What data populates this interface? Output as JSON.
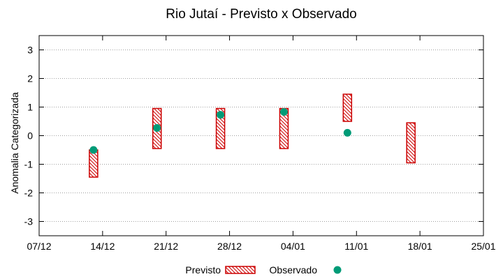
{
  "chart_data": {
    "type": "range-bar",
    "title": "Rio Jutaí - Previsto x Observado",
    "ylabel": "Anomalia Categorizada",
    "xlabel": "",
    "ylim": [
      -3.5,
      3.5
    ],
    "yticks": [
      3,
      2,
      1,
      0,
      -1,
      -2,
      -3
    ],
    "ytick_labels": [
      "3",
      "2",
      "1",
      "0",
      "-1",
      "-2",
      "-3"
    ],
    "xticks": [
      "07/12",
      "14/12",
      "21/12",
      "28/12",
      "04/01",
      "11/01",
      "18/01",
      "25/01"
    ],
    "grid": true,
    "legend_position": "bottom",
    "series": [
      {
        "name": "Previsto",
        "kind": "range",
        "points": [
          {
            "x": "13/12",
            "low": -1.45,
            "high": -0.5
          },
          {
            "x": "20/12",
            "low": -0.45,
            "high": 0.95
          },
          {
            "x": "27/12",
            "low": -0.45,
            "high": 0.95
          },
          {
            "x": "03/01",
            "low": -0.45,
            "high": 0.95
          },
          {
            "x": "10/01",
            "low": 0.5,
            "high": 1.45
          },
          {
            "x": "17/01",
            "low": -0.95,
            "high": 0.45
          }
        ]
      },
      {
        "name": "Observado",
        "kind": "point",
        "points": [
          {
            "x": "13/12",
            "y": -0.5
          },
          {
            "x": "20/12",
            "y": 0.27
          },
          {
            "x": "27/12",
            "y": 0.73
          },
          {
            "x": "03/01",
            "y": 0.83
          },
          {
            "x": "10/01",
            "y": 0.1
          }
        ]
      }
    ],
    "colors": {
      "previsto": "#cc0000",
      "observado": "#009b77",
      "grid": "#a0a0a0"
    }
  }
}
